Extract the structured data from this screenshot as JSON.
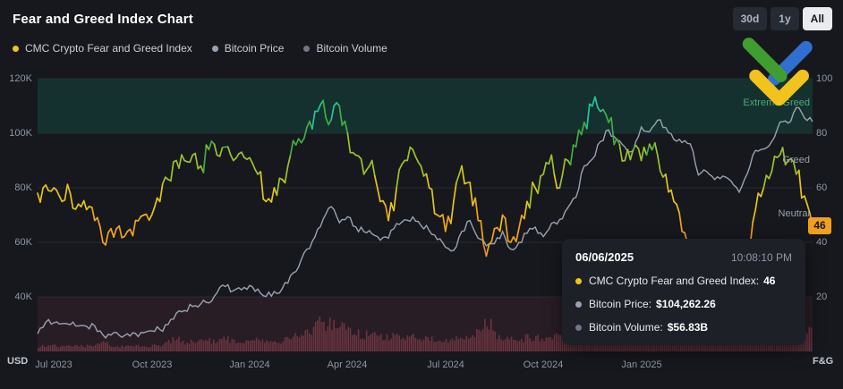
{
  "header": {
    "title": "Fear and Greed Index Chart",
    "range_buttons": [
      {
        "label": "30d",
        "active": false
      },
      {
        "label": "1y",
        "active": false
      },
      {
        "label": "All",
        "active": true
      }
    ]
  },
  "legend": [
    {
      "label": "CMC Crypto Fear and Greed Index",
      "color": "#f0c419"
    },
    {
      "label": "Bitcoin Price",
      "color": "#99a2b3"
    },
    {
      "label": "Bitcoin Volume",
      "color": "#6f7685"
    }
  ],
  "logo": {
    "name": "litefinance-brand-mark",
    "colors": {
      "green": "#3f9e2f",
      "blue": "#2f6fd0",
      "yellow": "#f2c21d"
    }
  },
  "fng_badge": {
    "value": "46",
    "color": "#f0a01f"
  },
  "tooltip": {
    "date": "06/06/2025",
    "time": "10:08:10 PM",
    "rows": [
      {
        "label": "CMC Crypto Fear and Greed Index:",
        "value": "46",
        "color": "#f0c419"
      },
      {
        "label": "Bitcoin Price:",
        "value": "$104,262.26",
        "color": "#99a2b3"
      },
      {
        "label": "Bitcoin Volume:",
        "value": "$56.83B",
        "color": "#6f7685"
      }
    ]
  },
  "chart_data": {
    "type": "line",
    "title": "Fear and Greed Index Chart",
    "x_ticks": [
      "Jul 2023",
      "Oct 2023",
      "Jan 2024",
      "Apr 2024",
      "Jul 2024",
      "Oct 2024",
      "Jan 2025"
    ],
    "x_range": [
      "Jun 2023",
      "06/06/2025"
    ],
    "left_axis": {
      "unit": "USD",
      "ticks": [
        "120K",
        "100K",
        "80K",
        "60K",
        "40K"
      ],
      "range": [
        20000,
        120000
      ]
    },
    "right_axis": {
      "unit": "F&G",
      "ticks": [
        "100",
        "80",
        "60",
        "40",
        "20"
      ],
      "range": [
        0,
        100
      ]
    },
    "bands": [
      {
        "name": "extreme-greed-zone",
        "range": [
          80,
          100
        ],
        "color": "#15423c",
        "opacity": 0.6
      },
      {
        "name": "extreme-fear-zone",
        "range": [
          0,
          20
        ],
        "color": "#462531",
        "opacity": 0.4
      }
    ],
    "zone_labels": [
      {
        "label": "Extreme Greed",
        "color": "#4aa87c"
      },
      {
        "label": "Greed",
        "color": "#99a1b0"
      },
      {
        "label": "Neutral",
        "color": "#99a1b0"
      }
    ],
    "fng_color_scale": [
      {
        "min": 88,
        "color": "#27c2a0"
      },
      {
        "min": 75,
        "color": "#3fae3f"
      },
      {
        "min": 62,
        "color": "#9bc22c"
      },
      {
        "min": 50,
        "color": "#e4c41c"
      },
      {
        "min": 36,
        "color": "#f0a21c"
      },
      {
        "min": 0,
        "color": "#f07c1a"
      }
    ],
    "colors": {
      "btc_line": "#99a2b3",
      "volume_bar": "#7a3b47",
      "grid": "#262b33"
    },
    "series": [
      {
        "name": "CMC Crypto Fear and Greed Index",
        "axis": "right",
        "current": 46,
        "values": [
          58,
          61,
          60,
          55,
          58,
          54,
          52,
          48,
          40,
          45,
          46,
          44,
          48,
          50,
          50,
          55,
          63,
          70,
          70,
          72,
          68,
          74,
          72,
          75,
          70,
          73,
          71,
          65,
          55,
          60,
          63,
          72,
          78,
          82,
          88,
          92,
          85,
          90,
          80,
          72,
          65,
          70,
          55,
          48,
          60,
          70,
          74,
          68,
          60,
          50,
          44,
          55,
          68,
          62,
          48,
          35,
          45,
          50,
          40,
          45,
          55,
          60,
          65,
          72,
          60,
          70,
          75,
          84,
          90,
          88,
          84,
          78,
          70,
          74,
          70,
          76,
          72,
          65,
          55,
          44,
          35,
          30,
          25,
          32,
          40,
          35,
          28,
          38,
          52,
          60,
          66,
          72,
          70,
          65,
          57,
          46
        ]
      },
      {
        "name": "Bitcoin Price",
        "axis": "left",
        "unit": "K USD",
        "current": 104.26,
        "values": [
          26.5,
          30.7,
          30.5,
          30.2,
          29.8,
          29.3,
          29.2,
          29.4,
          26.1,
          26.0,
          25.9,
          26.5,
          26.6,
          26.9,
          27.5,
          28.0,
          29.9,
          34.0,
          35.0,
          36.5,
          37.4,
          37.8,
          41.5,
          43.8,
          42.3,
          42.6,
          44.2,
          42.9,
          40.1,
          42.0,
          43.1,
          47.8,
          51.0,
          57.5,
          62.0,
          68.5,
          73.1,
          67.2,
          69.4,
          65.7,
          63.9,
          63.1,
          60.8,
          61.5,
          66.9,
          68.3,
          69.3,
          66.2,
          64.3,
          61.0,
          58.2,
          57.0,
          64.0,
          68.0,
          61.5,
          58.7,
          59.5,
          64.0,
          57.5,
          60.0,
          63.3,
          65.6,
          62.1,
          67.0,
          68.4,
          72.7,
          76.5,
          88.0,
          90.5,
          97.0,
          101.2,
          97.5,
          95.0,
          93.5,
          102.3,
          100.5,
          104.8,
          102.1,
          97.7,
          96.6,
          96.1,
          84.7,
          86.0,
          83.0,
          84.3,
          82.5,
          78.4,
          85.2,
          93.7,
          94.2,
          97.0,
          104.1,
          103.7,
          109.4,
          105.6,
          104.26
        ]
      },
      {
        "name": "Bitcoin Volume",
        "type": "bar",
        "unit": "$B",
        "current": 56.83,
        "values": [
          12,
          14,
          15,
          13,
          12,
          14,
          13,
          16,
          28,
          15,
          12,
          13,
          14,
          12,
          14,
          15,
          24,
          30,
          22,
          25,
          23,
          26,
          28,
          32,
          26,
          24,
          30,
          27,
          25,
          23,
          26,
          34,
          40,
          45,
          62,
          70,
          66,
          58,
          48,
          44,
          40,
          38,
          36,
          34,
          38,
          35,
          33,
          30,
          28,
          32,
          30,
          28,
          34,
          32,
          55,
          80,
          42,
          34,
          30,
          32,
          33,
          35,
          34,
          38,
          36,
          42,
          55,
          75,
          70,
          68,
          72,
          60,
          55,
          52,
          58,
          50,
          54,
          48,
          46,
          44,
          60,
          78,
          70,
          58,
          50,
          46,
          52,
          66,
          60,
          50,
          48,
          54,
          50,
          56,
          50,
          56.83
        ]
      }
    ]
  }
}
